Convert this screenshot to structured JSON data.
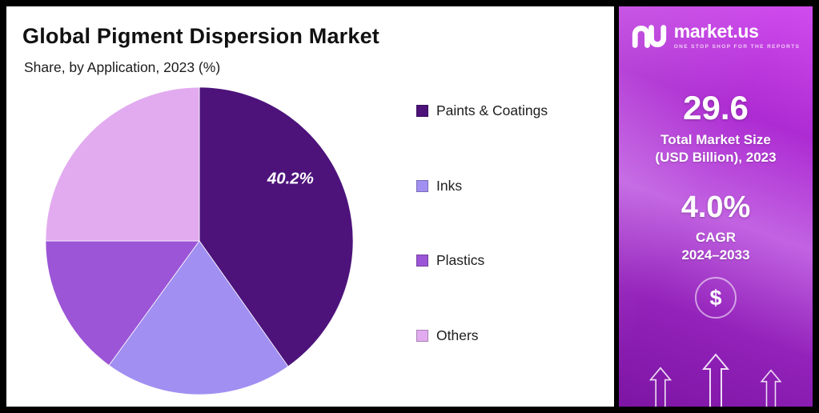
{
  "title": "Global Pigment Dispersion Market",
  "subtitle": "Share, by Application, 2023 (%)",
  "chart_data": {
    "type": "pie",
    "categories": [
      "Paints & Coatings",
      "Inks",
      "Plastics",
      "Others"
    ],
    "values": [
      40.2,
      19.8,
      15.0,
      25.0
    ],
    "colors": [
      "#4d137b",
      "#a18ff2",
      "#9c55d6",
      "#e2abf0"
    ],
    "start_angle_deg": 0,
    "direction": "clockwise",
    "legend_position": "right",
    "slice_label": {
      "text": "40.2%",
      "slice_index": 0
    }
  },
  "sidebar": {
    "brand_name": "market.us",
    "brand_tagline": "ONE STOP SHOP FOR THE REPORTS",
    "market_size_value": "29.6",
    "market_size_label_line1": "Total Market Size",
    "market_size_label_line2": "(USD Billion), 2023",
    "cagr_value": "4.0%",
    "cagr_label_line1": "CAGR",
    "cagr_label_line2": "2024–2033",
    "dollar_symbol": "$",
    "gradient_top": "#d14cee",
    "gradient_bottom": "#7d15a4"
  },
  "frame": {
    "border_color": "#000000",
    "chart_background": "#ffffff"
  }
}
